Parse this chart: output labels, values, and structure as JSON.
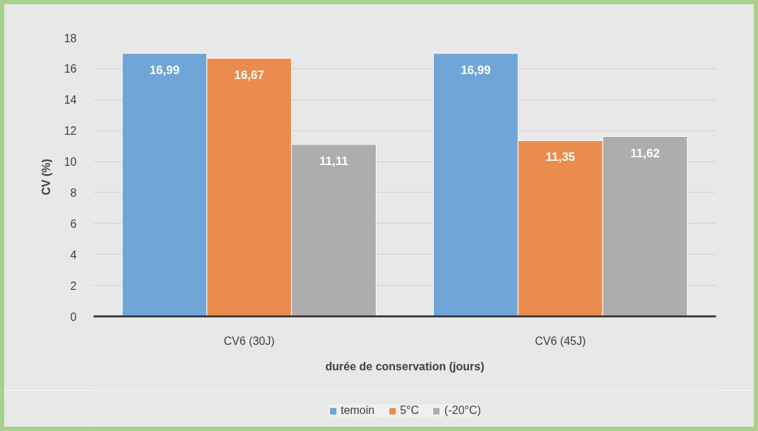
{
  "chart_data": {
    "type": "bar",
    "xlabel": "durée de conservation (jours)",
    "ylabel": "CV (%)",
    "categories": [
      "CV6 (30J)",
      "CV6 (45J)"
    ],
    "series": [
      {
        "name": "temoin",
        "color": "#6fa5d7",
        "values": [
          16.99,
          16.99
        ],
        "value_labels": [
          "16,99",
          "16,99"
        ]
      },
      {
        "name": "5°C",
        "color": "#eb8c4f",
        "values": [
          16.67,
          11.35
        ],
        "value_labels": [
          "16,67",
          "11,35"
        ]
      },
      {
        "name": "(-20°C)",
        "color": "#adadad",
        "values": [
          11.11,
          11.62
        ],
        "value_labels": [
          "11,11",
          "11,62"
        ]
      }
    ],
    "ylim": [
      0,
      18
    ],
    "yticks": [
      0,
      2,
      4,
      6,
      8,
      10,
      12,
      14,
      16,
      18
    ],
    "grid": "y",
    "legend": "bottom"
  }
}
